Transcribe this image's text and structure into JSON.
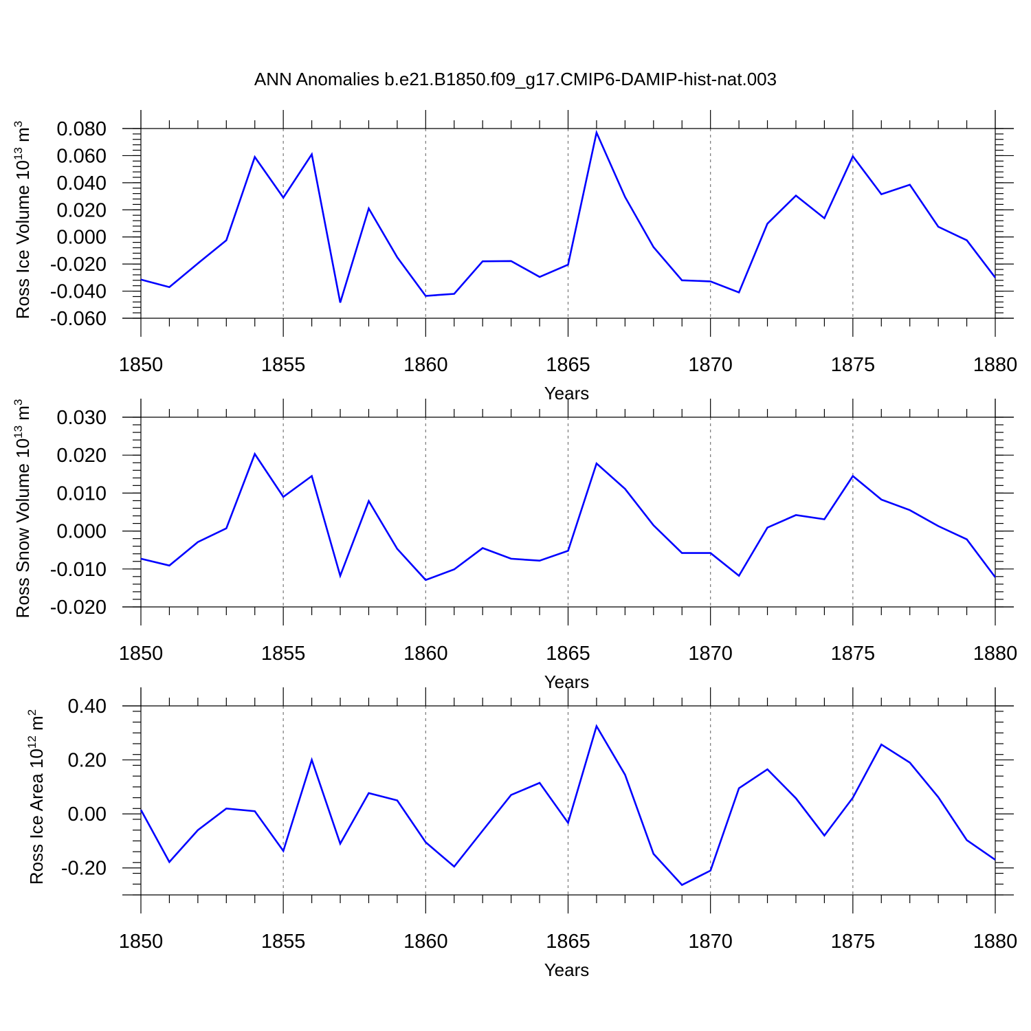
{
  "chart_data": {
    "title": "ANN Anomalies b.e21.B1850.f09_g17.CMIP6-DAMIP-hist-nat.003",
    "line_color": "#0000ff",
    "panels": [
      {
        "type": "line",
        "ylabel": "Ross Ice Volume 10",
        "ylabel_exp": "13",
        "ylabel_unit": " m",
        "ylabel_unit_exp": "3",
        "xlabel": "Years",
        "xlim": [
          1850,
          1880
        ],
        "ylim": [
          -0.06,
          0.08
        ],
        "yticks": [
          -0.06,
          -0.04,
          -0.02,
          0.0,
          0.02,
          0.04,
          0.06,
          0.08
        ],
        "ytick_labels": [
          "-0.060",
          "-0.040",
          "-0.020",
          "0.000",
          "0.020",
          "0.040",
          "0.060",
          "0.080"
        ],
        "xticks": [
          1850,
          1855,
          1860,
          1865,
          1870,
          1875,
          1880
        ],
        "xtick_labels": [
          "1850",
          "1855",
          "1860",
          "1865",
          "1870",
          "1875",
          "1880"
        ],
        "x": [
          1850,
          1851,
          1852,
          1853,
          1854,
          1855,
          1856,
          1857,
          1858,
          1859,
          1860,
          1861,
          1862,
          1863,
          1864,
          1865,
          1866,
          1867,
          1868,
          1869,
          1870,
          1871,
          1872,
          1873,
          1874,
          1875,
          1876,
          1877,
          1878,
          1879,
          1880
        ],
        "values": [
          -0.0315,
          -0.037,
          -0.0195,
          -0.0025,
          0.059,
          0.029,
          0.061,
          -0.0485,
          0.021,
          -0.015,
          -0.0435,
          -0.042,
          -0.018,
          -0.0178,
          -0.0295,
          -0.0205,
          0.077,
          0.0295,
          -0.0075,
          -0.032,
          -0.0328,
          -0.041,
          0.0098,
          0.0305,
          0.0138,
          0.0595,
          0.0315,
          0.0385,
          0.0075,
          -0.0025,
          -0.03
        ]
      },
      {
        "type": "line",
        "ylabel": "Ross Snow Volume 10",
        "ylabel_exp": "13",
        "ylabel_unit": " m",
        "ylabel_unit_exp": "3",
        "xlabel": "Years",
        "xlim": [
          1850,
          1880
        ],
        "ylim": [
          -0.02,
          0.03
        ],
        "yticks": [
          -0.02,
          -0.01,
          0.0,
          0.01,
          0.02,
          0.03
        ],
        "ytick_labels": [
          "-0.020",
          "-0.010",
          "0.000",
          "0.010",
          "0.020",
          "0.030"
        ],
        "xticks": [
          1850,
          1855,
          1860,
          1865,
          1870,
          1875,
          1880
        ],
        "xtick_labels": [
          "1850",
          "1855",
          "1860",
          "1865",
          "1870",
          "1875",
          "1880"
        ],
        "x": [
          1850,
          1851,
          1852,
          1853,
          1854,
          1855,
          1856,
          1857,
          1858,
          1859,
          1860,
          1861,
          1862,
          1863,
          1864,
          1865,
          1866,
          1867,
          1868,
          1869,
          1870,
          1871,
          1872,
          1873,
          1874,
          1875,
          1876,
          1877,
          1878,
          1879,
          1880
        ],
        "values": [
          -0.0073,
          -0.0091,
          -0.0029,
          0.0007,
          0.0203,
          0.009,
          0.0145,
          -0.0118,
          0.0079,
          -0.0047,
          -0.0129,
          -0.0101,
          -0.0045,
          -0.0073,
          -0.0078,
          -0.0052,
          0.0178,
          0.0111,
          0.0015,
          -0.0058,
          -0.0058,
          -0.0118,
          0.0009,
          0.0042,
          0.0031,
          0.0145,
          0.0083,
          0.0055,
          0.0013,
          -0.0022,
          -0.0122
        ]
      },
      {
        "type": "line",
        "ylabel": "Ross Ice Area 10",
        "ylabel_exp": "12",
        "ylabel_unit": " m",
        "ylabel_unit_exp": "2",
        "xlabel": "Years",
        "xlim": [
          1850,
          1880
        ],
        "ylim": [
          -0.3,
          0.4
        ],
        "yticks": [
          -0.2,
          0.0,
          0.2,
          0.4
        ],
        "ytick_labels": [
          "-0.20",
          "0.00",
          "0.20",
          "0.40"
        ],
        "xticks": [
          1850,
          1855,
          1860,
          1865,
          1870,
          1875,
          1880
        ],
        "xtick_labels": [
          "1850",
          "1855",
          "1860",
          "1865",
          "1870",
          "1875",
          "1880"
        ],
        "x": [
          1850,
          1851,
          1852,
          1853,
          1854,
          1855,
          1856,
          1857,
          1858,
          1859,
          1860,
          1861,
          1862,
          1863,
          1864,
          1865,
          1866,
          1867,
          1868,
          1869,
          1870,
          1871,
          1872,
          1873,
          1874,
          1875,
          1876,
          1877,
          1878,
          1879,
          1880
        ],
        "values": [
          0.015,
          -0.178,
          -0.06,
          0.02,
          0.01,
          -0.137,
          0.2,
          -0.11,
          0.077,
          0.05,
          -0.105,
          -0.195,
          -0.062,
          0.07,
          0.115,
          -0.033,
          0.325,
          0.145,
          -0.148,
          -0.263,
          -0.21,
          0.095,
          0.165,
          0.058,
          -0.08,
          0.06,
          0.257,
          0.19,
          0.062,
          -0.097,
          -0.17
        ]
      }
    ]
  }
}
